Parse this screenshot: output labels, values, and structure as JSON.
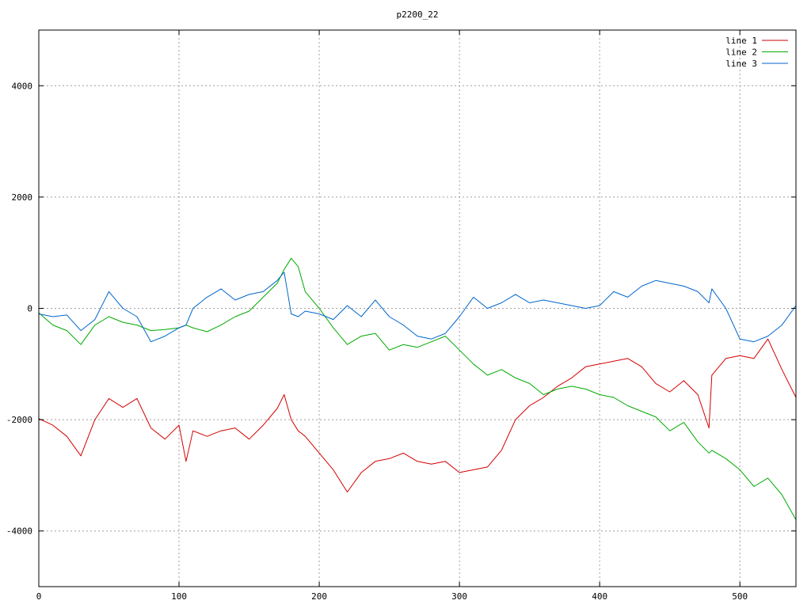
{
  "chart_data": {
    "type": "line",
    "title": "p2200_22",
    "xlabel": "",
    "ylabel": "",
    "xlim": [
      0,
      540
    ],
    "ylim": [
      -5000,
      5000
    ],
    "xticks": [
      0,
      100,
      200,
      300,
      400,
      500
    ],
    "yticks": [
      -4000,
      -2000,
      0,
      2000,
      4000
    ],
    "grid": true,
    "legend_position": "top-right",
    "x": [
      0,
      10,
      20,
      30,
      40,
      50,
      60,
      70,
      80,
      90,
      100,
      105,
      110,
      120,
      130,
      140,
      150,
      160,
      170,
      175,
      180,
      185,
      190,
      200,
      210,
      220,
      230,
      240,
      250,
      260,
      270,
      280,
      290,
      300,
      310,
      320,
      330,
      340,
      350,
      360,
      370,
      380,
      390,
      400,
      410,
      420,
      430,
      440,
      450,
      460,
      470,
      478,
      480,
      490,
      500,
      510,
      520,
      530,
      540
    ],
    "series": [
      {
        "name": "line 1",
        "color": "#d40000",
        "values": [
          -1980,
          -2100,
          -2300,
          -2650,
          -2000,
          -1620,
          -1780,
          -1620,
          -2150,
          -2350,
          -2100,
          -2750,
          -2200,
          -2300,
          -2200,
          -2150,
          -2350,
          -2100,
          -1800,
          -1550,
          -2000,
          -2200,
          -2300,
          -2600,
          -2900,
          -3300,
          -2950,
          -2750,
          -2700,
          -2600,
          -2750,
          -2800,
          -2750,
          -2950,
          -2900,
          -2850,
          -2550,
          -2000,
          -1750,
          -1600,
          -1400,
          -1250,
          -1050,
          -1000,
          -950,
          -900,
          -1050,
          -1350,
          -1500,
          -1300,
          -1550,
          -2150,
          -1200,
          -900,
          -850,
          -900,
          -550,
          -1100,
          -1600
        ]
      },
      {
        "name": "line 2",
        "color": "#00aa00",
        "values": [
          -80,
          -300,
          -400,
          -650,
          -300,
          -150,
          -250,
          -300,
          -400,
          -380,
          -350,
          -300,
          -350,
          -420,
          -300,
          -150,
          -50,
          200,
          450,
          700,
          900,
          750,
          300,
          0,
          -350,
          -650,
          -500,
          -450,
          -750,
          -650,
          -700,
          -600,
          -500,
          -750,
          -1000,
          -1200,
          -1100,
          -1250,
          -1350,
          -1550,
          -1450,
          -1400,
          -1450,
          -1550,
          -1600,
          -1750,
          -1850,
          -1950,
          -2200,
          -2050,
          -2400,
          -2600,
          -2550,
          -2700,
          -2900,
          -3200,
          -3050,
          -3350,
          -3800
        ]
      },
      {
        "name": "line 3",
        "color": "#0066cc",
        "values": [
          -100,
          -150,
          -120,
          -400,
          -200,
          300,
          0,
          -150,
          -600,
          -500,
          -350,
          -300,
          0,
          200,
          350,
          150,
          250,
          300,
          500,
          650,
          -100,
          -150,
          -50,
          -100,
          -200,
          50,
          -150,
          150,
          -150,
          -300,
          -500,
          -550,
          -450,
          -150,
          200,
          0,
          100,
          250,
          100,
          150,
          100,
          50,
          0,
          50,
          300,
          200,
          400,
          500,
          450,
          400,
          300,
          100,
          350,
          0,
          -550,
          -600,
          -500,
          -300,
          50
        ]
      }
    ]
  }
}
